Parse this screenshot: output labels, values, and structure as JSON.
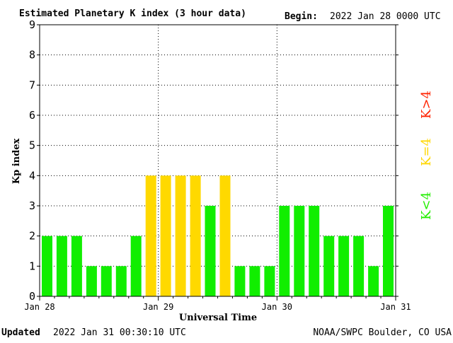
{
  "header": {
    "title": "Estimated Planetary K index (3 hour data)",
    "begin_label": "Begin:",
    "begin_value": "2022 Jan 28 0000 UTC"
  },
  "footer": {
    "updated_label": "Updated",
    "updated_value": "2022 Jan 31 00:30:10 UTC",
    "source": "NOAA/SWPC Boulder, CO USA"
  },
  "legend": {
    "high": {
      "label": "K>4",
      "color": "#ff2200"
    },
    "mid": {
      "label": "K=4",
      "color": "#ffd700"
    },
    "low": {
      "label": "K<4",
      "color": "#22ee00"
    }
  },
  "colors": {
    "low": "#11ee00",
    "mid": "#ffd900",
    "high": "#ff2200",
    "grid": "#000000",
    "axis": "#000000"
  },
  "chart_data": {
    "type": "bar",
    "title": "Estimated Planetary K index (3 hour data)",
    "xlabel": "Universal Time",
    "ylabel": "Kp index",
    "ylim": [
      0,
      9
    ],
    "yticks": [
      0,
      1,
      2,
      3,
      4,
      5,
      6,
      7,
      8,
      9
    ],
    "x_tick_labels": [
      "Jan 28",
      "Jan 29",
      "Jan 30",
      "Jan 31"
    ],
    "grid": true,
    "categories": [
      "Jan 28 00",
      "Jan 28 03",
      "Jan 28 06",
      "Jan 28 09",
      "Jan 28 12",
      "Jan 28 15",
      "Jan 28 18",
      "Jan 28 21",
      "Jan 29 00",
      "Jan 29 03",
      "Jan 29 06",
      "Jan 29 09",
      "Jan 29 12",
      "Jan 29 15",
      "Jan 29 18",
      "Jan 29 21",
      "Jan 30 00",
      "Jan 30 03",
      "Jan 30 06",
      "Jan 30 09",
      "Jan 30 12",
      "Jan 30 15",
      "Jan 30 18",
      "Jan 30 21"
    ],
    "values": [
      2,
      2,
      2,
      1,
      1,
      1,
      2,
      4,
      4,
      4,
      4,
      3,
      4,
      1,
      1,
      1,
      3,
      3,
      3,
      2,
      2,
      2,
      1,
      3
    ]
  }
}
